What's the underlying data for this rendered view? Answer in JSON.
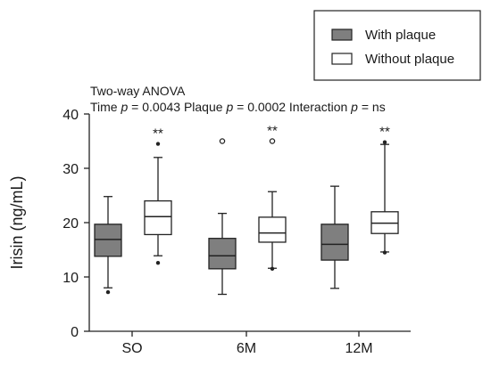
{
  "chart_data": {
    "type": "boxplot",
    "ylabel": "Irisin (ng/mL)",
    "xlabel": "",
    "ylim": [
      0,
      40
    ],
    "yticks": [
      0,
      10,
      20,
      30,
      40
    ],
    "categories": [
      "SO",
      "6M",
      "12M"
    ],
    "legend": {
      "position": "top-right",
      "entries": [
        "With plaque",
        "Without plaque"
      ]
    },
    "annotation": {
      "line1": "Two-way ANOVA",
      "line2": {
        "time_label": "Time ",
        "time_p": "p",
        "time_val": " = 0.0043 Plaque ",
        "plaque_p": "p",
        "plaque_val": " = 0.0002 Interaction ",
        "inter_p": "p",
        "inter_val": " = ns"
      }
    },
    "series": [
      {
        "name": "With plaque",
        "color": "#7f7f7f",
        "boxes": [
          {
            "category": "SO",
            "whisker_low": 8,
            "q1": 13.8,
            "median": 16.9,
            "q3": 19.7,
            "whisker_high": 24.8,
            "outliers": [
              7.2
            ],
            "significance": ""
          },
          {
            "category": "6M",
            "whisker_low": 6.8,
            "q1": 11.5,
            "median": 13.9,
            "q3": 17.1,
            "whisker_high": 21.7,
            "outliers": [
              35
            ],
            "significance": ""
          },
          {
            "category": "12M",
            "whisker_low": 7.9,
            "q1": 13.1,
            "median": 16,
            "q3": 19.7,
            "whisker_high": 26.7,
            "outliers": [],
            "significance": ""
          }
        ]
      },
      {
        "name": "Without plaque",
        "color": "#ffffff",
        "boxes": [
          {
            "category": "SO",
            "whisker_low": 13.9,
            "q1": 17.8,
            "median": 21.1,
            "q3": 24,
            "whisker_high": 32,
            "outliers": [
              12.6,
              34.5
            ],
            "significance": "**"
          },
          {
            "category": "6M",
            "whisker_low": 11.6,
            "q1": 16.4,
            "median": 18.1,
            "q3": 21,
            "whisker_high": 25.7,
            "outliers": [
              11.5,
              35
            ],
            "significance": "**"
          },
          {
            "category": "12M",
            "whisker_low": 14.6,
            "q1": 18,
            "median": 19.9,
            "q3": 22,
            "whisker_high": 34.4,
            "outliers": [
              14.5,
              34.8
            ],
            "significance": "**"
          }
        ]
      }
    ]
  }
}
